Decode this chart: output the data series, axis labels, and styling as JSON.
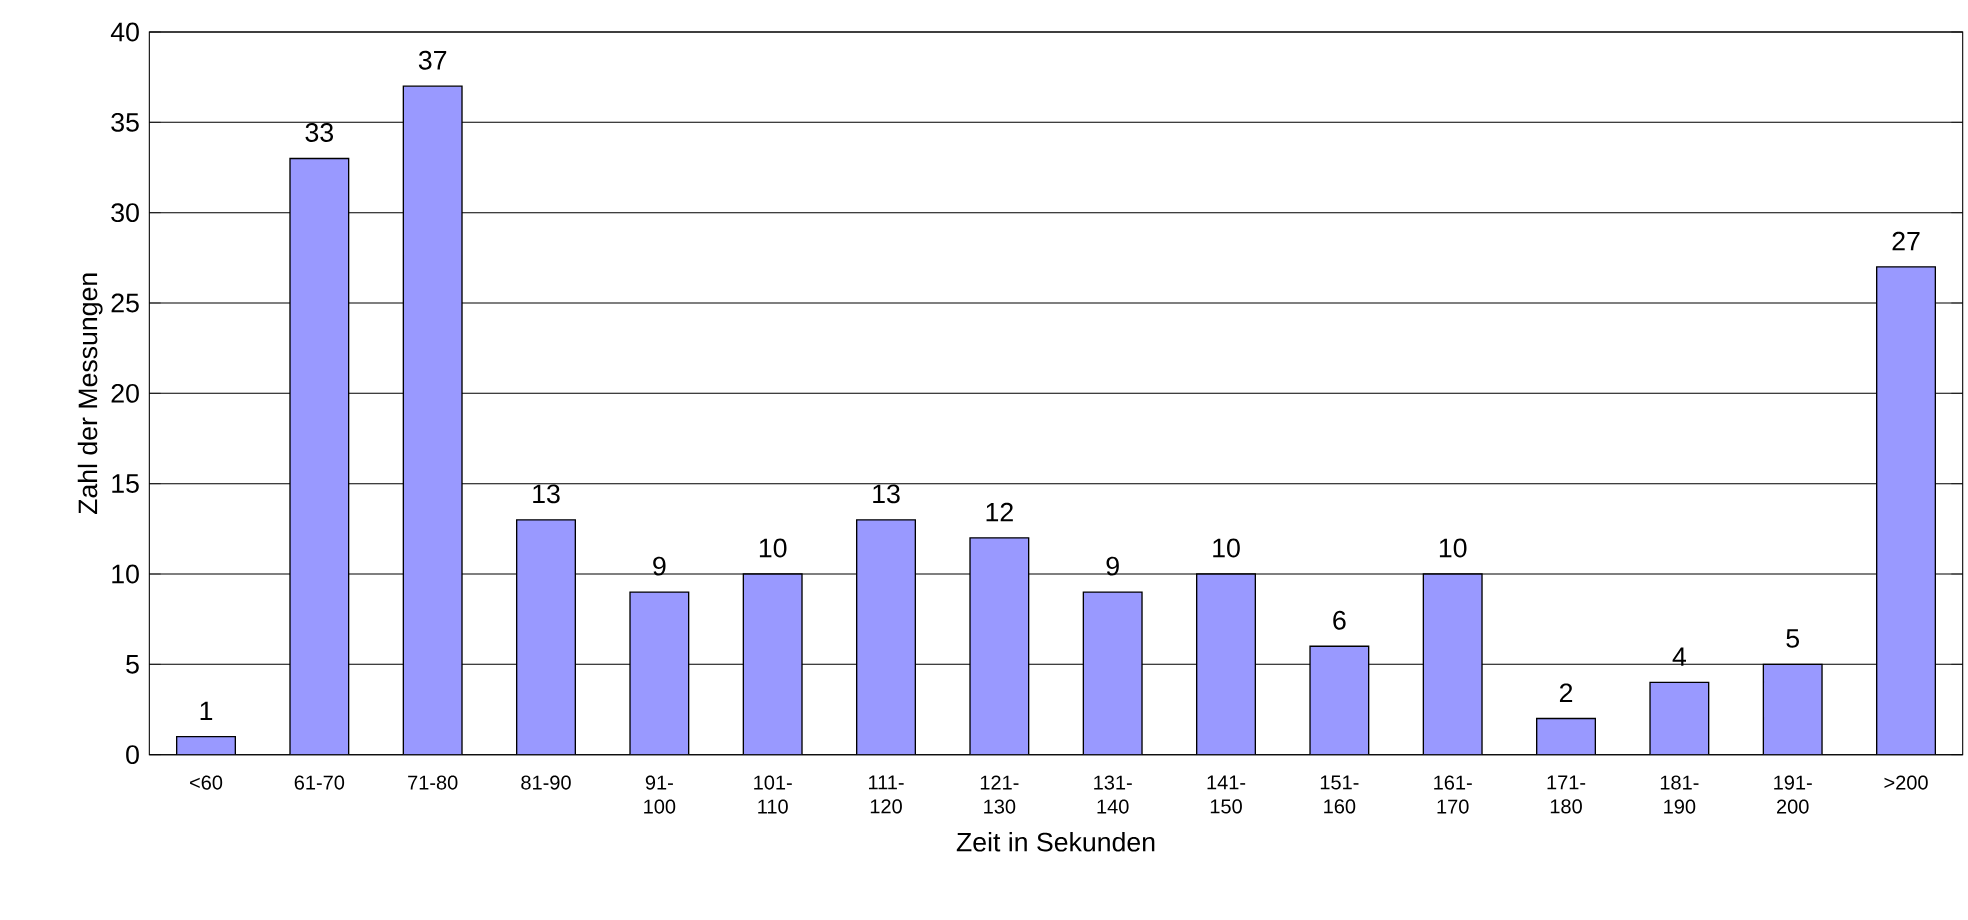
{
  "chart_data": {
    "type": "bar",
    "xlabel": "Zeit in Sekunden",
    "ylabel": "Zahl der Messungen",
    "categories": [
      "<60",
      "61-70",
      "71-80",
      "81-90",
      "91-100",
      "101-110",
      "111-120",
      "121-130",
      "131-140",
      "141-150",
      "151-160",
      "161-170",
      "171-180",
      "181-190",
      "191-200",
      ">200"
    ],
    "values": [
      1,
      33,
      37,
      13,
      9,
      10,
      13,
      12,
      9,
      10,
      6,
      10,
      2,
      4,
      5,
      27
    ],
    "color": "#9999ff",
    "data_labels": true,
    "grid": "y",
    "ylim": [
      0,
      40
    ],
    "yticks": [
      0,
      5,
      10,
      15,
      20,
      25,
      30,
      35,
      40
    ]
  }
}
